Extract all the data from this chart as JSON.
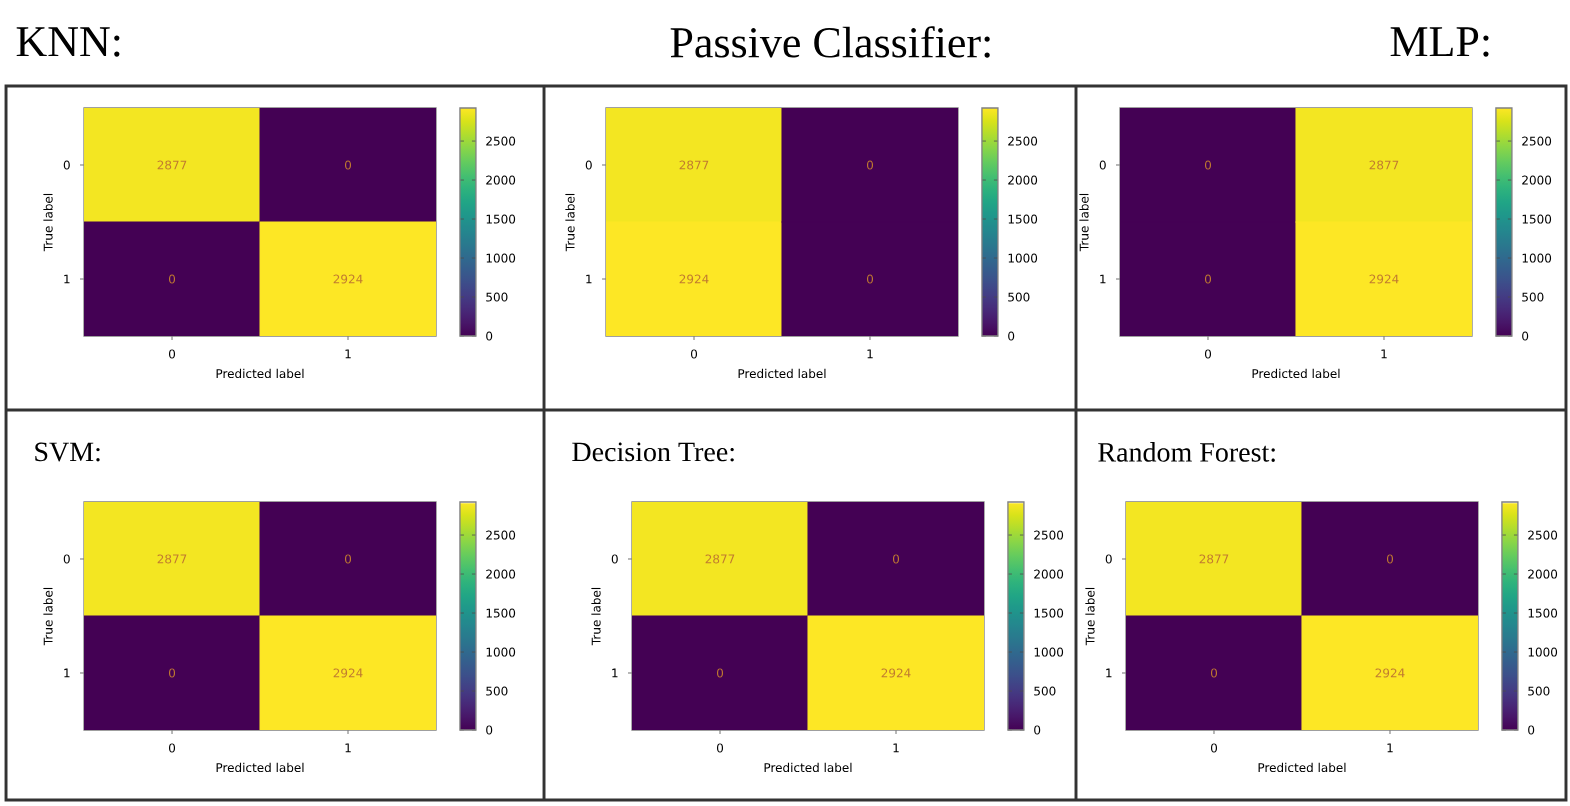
{
  "chart_data": [
    {
      "type": "heatmap",
      "title": "KNN:",
      "xlabel": "Predicted label",
      "ylabel": "True label",
      "categories": [
        "0",
        "1"
      ],
      "y_categories": [
        "0",
        "1"
      ],
      "cells": [
        [
          2877,
          0
        ],
        [
          0,
          2924
        ]
      ],
      "data_labels": true,
      "clim": [
        0,
        2924
      ],
      "cticks": [
        0,
        500,
        1000,
        1500,
        2000,
        2500
      ]
    },
    {
      "type": "heatmap",
      "title": "Passive Classifier:",
      "xlabel": "Predicted label",
      "ylabel": "True label",
      "categories": [
        "0",
        "1"
      ],
      "y_categories": [
        "0",
        "1"
      ],
      "cells": [
        [
          2877,
          0
        ],
        [
          2924,
          0
        ]
      ],
      "data_labels": true,
      "clim": [
        0,
        2924
      ],
      "cticks": [
        0,
        500,
        1000,
        1500,
        2000,
        2500
      ]
    },
    {
      "type": "heatmap",
      "title": "MLP:",
      "xlabel": "Predicted label",
      "ylabel": "True label",
      "categories": [
        "0",
        "1"
      ],
      "y_categories": [
        "0",
        "1"
      ],
      "cells": [
        [
          0,
          2877
        ],
        [
          0,
          2924
        ]
      ],
      "data_labels": true,
      "clim": [
        0,
        2924
      ],
      "cticks": [
        0,
        500,
        1000,
        1500,
        2000,
        2500
      ]
    },
    {
      "type": "heatmap",
      "title": "SVM:",
      "xlabel": "Predicted label",
      "ylabel": "True label",
      "categories": [
        "0",
        "1"
      ],
      "y_categories": [
        "0",
        "1"
      ],
      "cells": [
        [
          2877,
          0
        ],
        [
          0,
          2924
        ]
      ],
      "data_labels": true,
      "clim": [
        0,
        2924
      ],
      "cticks": [
        0,
        500,
        1000,
        1500,
        2000,
        2500
      ]
    },
    {
      "type": "heatmap",
      "title": "Decision Tree:",
      "xlabel": "Predicted label",
      "ylabel": "True label",
      "categories": [
        "0",
        "1"
      ],
      "y_categories": [
        "0",
        "1"
      ],
      "cells": [
        [
          2877,
          0
        ],
        [
          0,
          2924
        ]
      ],
      "data_labels": true,
      "clim": [
        0,
        2924
      ],
      "cticks": [
        0,
        500,
        1000,
        1500,
        2000,
        2500
      ]
    },
    {
      "type": "heatmap",
      "title": "Random Forest:",
      "xlabel": "Predicted label",
      "ylabel": "True label",
      "categories": [
        "0",
        "1"
      ],
      "y_categories": [
        "0",
        "1"
      ],
      "cells": [
        [
          2877,
          0
        ],
        [
          0,
          2924
        ]
      ],
      "data_labels": true,
      "clim": [
        0,
        2924
      ],
      "cticks": [
        0,
        500,
        1000,
        1500,
        2000,
        2500
      ]
    }
  ]
}
